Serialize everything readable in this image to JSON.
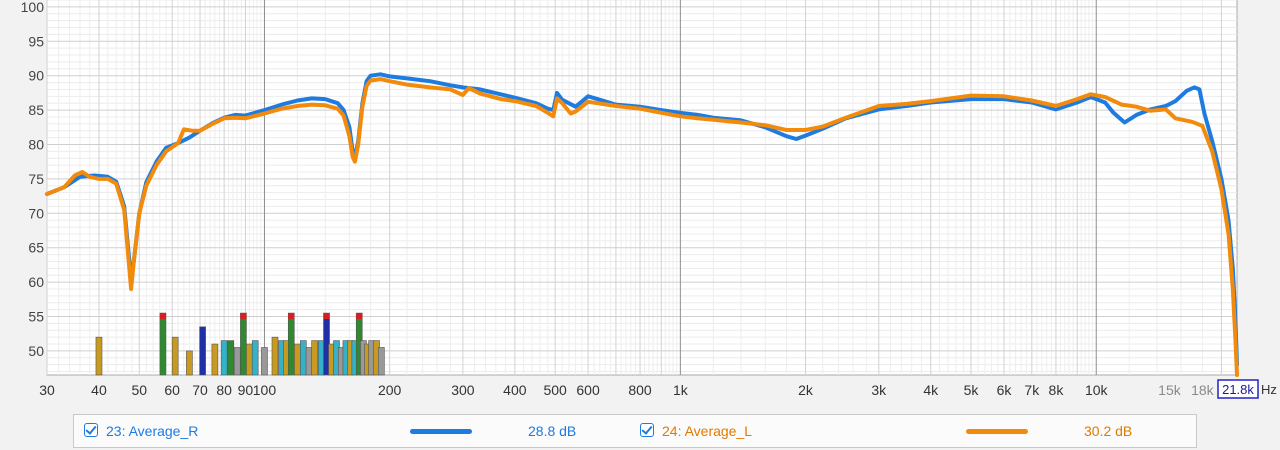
{
  "chart_data": {
    "type": "line",
    "x_scale": "log",
    "xlim": [
      30,
      21800
    ],
    "ylim": [
      46.5,
      101
    ],
    "x_unit": "Hz",
    "x_cursor_label": "21.8k",
    "y_ticks": [
      50,
      55,
      60,
      65,
      70,
      75,
      80,
      85,
      90,
      95,
      100
    ],
    "x_ticks": [
      {
        "v": 30,
        "t": "30"
      },
      {
        "v": 40,
        "t": "40"
      },
      {
        "v": 50,
        "t": "50"
      },
      {
        "v": 60,
        "t": "60"
      },
      {
        "v": 70,
        "t": "70"
      },
      {
        "v": 80,
        "t": "80"
      },
      {
        "v": 90,
        "t": "90"
      },
      {
        "v": 100,
        "t": "100"
      },
      {
        "v": 200,
        "t": "200"
      },
      {
        "v": 300,
        "t": "300"
      },
      {
        "v": 400,
        "t": "400"
      },
      {
        "v": 500,
        "t": "500"
      },
      {
        "v": 600,
        "t": "600"
      },
      {
        "v": 800,
        "t": "800"
      },
      {
        "v": 1000,
        "t": "1k"
      },
      {
        "v": 2000,
        "t": "2k"
      },
      {
        "v": 3000,
        "t": "3k"
      },
      {
        "v": 4000,
        "t": "4k"
      },
      {
        "v": 5000,
        "t": "5k"
      },
      {
        "v": 6000,
        "t": "6k"
      },
      {
        "v": 7000,
        "t": "7k"
      },
      {
        "v": 8000,
        "t": "8k"
      },
      {
        "v": 10000,
        "t": "10k"
      },
      {
        "v": 15000,
        "t": "15k",
        "dim": true
      },
      {
        "v": 18000,
        "t": "18k",
        "dim": true
      }
    ],
    "grid": true,
    "series": [
      {
        "name": "23: Average_R",
        "color": "#1e7be0",
        "points": [
          [
            30,
            72.8
          ],
          [
            33,
            73.8
          ],
          [
            36,
            75.3
          ],
          [
            39,
            75.5
          ],
          [
            42,
            75.3
          ],
          [
            44,
            74.6
          ],
          [
            46,
            71
          ],
          [
            47,
            65
          ],
          [
            47.8,
            60.5
          ],
          [
            48.5,
            63
          ],
          [
            50,
            70
          ],
          [
            52,
            74.5
          ],
          [
            55,
            77.5
          ],
          [
            58,
            79.5
          ],
          [
            62,
            80.2
          ],
          [
            66,
            81
          ],
          [
            70,
            82
          ],
          [
            75,
            83.1
          ],
          [
            80,
            83.9
          ],
          [
            85,
            84.3
          ],
          [
            90,
            84.2
          ],
          [
            100,
            85
          ],
          [
            110,
            85.8
          ],
          [
            120,
            86.4
          ],
          [
            130,
            86.7
          ],
          [
            140,
            86.6
          ],
          [
            150,
            86
          ],
          [
            155,
            85
          ],
          [
            160,
            82.5
          ],
          [
            163,
            79
          ],
          [
            165,
            78
          ],
          [
            168,
            80.5
          ],
          [
            172,
            86
          ],
          [
            176,
            89.2
          ],
          [
            180,
            90
          ],
          [
            190,
            90.2
          ],
          [
            200,
            89.9
          ],
          [
            220,
            89.6
          ],
          [
            250,
            89.2
          ],
          [
            280,
            88.6
          ],
          [
            300,
            88.3
          ],
          [
            330,
            88
          ],
          [
            370,
            87.3
          ],
          [
            400,
            86.8
          ],
          [
            450,
            86
          ],
          [
            480,
            85.2
          ],
          [
            495,
            85
          ],
          [
            505,
            87.5
          ],
          [
            520,
            86.5
          ],
          [
            560,
            85.5
          ],
          [
            600,
            87
          ],
          [
            650,
            86.4
          ],
          [
            700,
            85.8
          ],
          [
            800,
            85.5
          ],
          [
            900,
            85
          ],
          [
            1000,
            84.6
          ],
          [
            1100,
            84.3
          ],
          [
            1200,
            83.9
          ],
          [
            1400,
            83.5
          ],
          [
            1600,
            82.5
          ],
          [
            1800,
            81.2
          ],
          [
            1900,
            80.8
          ],
          [
            2000,
            81.3
          ],
          [
            2200,
            82.3
          ],
          [
            2500,
            83.8
          ],
          [
            3000,
            85.1
          ],
          [
            3500,
            85.6
          ],
          [
            4000,
            86.1
          ],
          [
            5000,
            86.6
          ],
          [
            6000,
            86.6
          ],
          [
            7000,
            86.1
          ],
          [
            8000,
            85.1
          ],
          [
            9000,
            86.1
          ],
          [
            9700,
            86.9
          ],
          [
            10500,
            86.1
          ],
          [
            11000,
            84.6
          ],
          [
            11700,
            83.2
          ],
          [
            12500,
            84.3
          ],
          [
            13500,
            85.1
          ],
          [
            14700,
            85.6
          ],
          [
            15500,
            86.3
          ],
          [
            16500,
            87.8
          ],
          [
            17200,
            88.3
          ],
          [
            17700,
            88
          ],
          [
            18200,
            84.5
          ],
          [
            19000,
            80.5
          ],
          [
            20000,
            75
          ],
          [
            20800,
            69
          ],
          [
            21300,
            62
          ],
          [
            21600,
            55
          ],
          [
            21800,
            48
          ]
        ]
      },
      {
        "name": "24: Average_L",
        "color": "#f28b0c",
        "points": [
          [
            30,
            72.8
          ],
          [
            33,
            73.8
          ],
          [
            35,
            75.5
          ],
          [
            36.5,
            76
          ],
          [
            38,
            75.3
          ],
          [
            40,
            75
          ],
          [
            42,
            75
          ],
          [
            44,
            74.3
          ],
          [
            46,
            70.5
          ],
          [
            47,
            64
          ],
          [
            47.8,
            59
          ],
          [
            48.5,
            63
          ],
          [
            50,
            70
          ],
          [
            52,
            74
          ],
          [
            55,
            77
          ],
          [
            58,
            79
          ],
          [
            62,
            80.2
          ],
          [
            64,
            82.2
          ],
          [
            67,
            82
          ],
          [
            70,
            82
          ],
          [
            75,
            83
          ],
          [
            80,
            83.8
          ],
          [
            85,
            83.9
          ],
          [
            90,
            83.8
          ],
          [
            100,
            84.5
          ],
          [
            110,
            85.2
          ],
          [
            120,
            85.6
          ],
          [
            130,
            85.8
          ],
          [
            140,
            85.7
          ],
          [
            150,
            85.2
          ],
          [
            155,
            84.2
          ],
          [
            160,
            81.2
          ],
          [
            163,
            78.2
          ],
          [
            165,
            77.5
          ],
          [
            168,
            80
          ],
          [
            172,
            85.5
          ],
          [
            176,
            88.5
          ],
          [
            180,
            89.3
          ],
          [
            190,
            89.5
          ],
          [
            200,
            89.2
          ],
          [
            220,
            88.7
          ],
          [
            250,
            88.3
          ],
          [
            280,
            88
          ],
          [
            300,
            87.2
          ],
          [
            310,
            88.2
          ],
          [
            330,
            87.4
          ],
          [
            370,
            86.6
          ],
          [
            400,
            86.3
          ],
          [
            450,
            85.6
          ],
          [
            480,
            84.6
          ],
          [
            495,
            84.1
          ],
          [
            505,
            86.7
          ],
          [
            520,
            86
          ],
          [
            545,
            84.5
          ],
          [
            560,
            84.8
          ],
          [
            600,
            86.2
          ],
          [
            650,
            85.9
          ],
          [
            700,
            85.6
          ],
          [
            800,
            85.2
          ],
          [
            900,
            84.6
          ],
          [
            1000,
            84.1
          ],
          [
            1100,
            83.8
          ],
          [
            1200,
            83.6
          ],
          [
            1400,
            83.2
          ],
          [
            1600,
            82.8
          ],
          [
            1800,
            82.1
          ],
          [
            2000,
            82.1
          ],
          [
            2200,
            82.6
          ],
          [
            2500,
            83.9
          ],
          [
            3000,
            85.6
          ],
          [
            3500,
            85.9
          ],
          [
            4000,
            86.3
          ],
          [
            5000,
            87.1
          ],
          [
            6000,
            87
          ],
          [
            7000,
            86.4
          ],
          [
            8000,
            85.6
          ],
          [
            9000,
            86.6
          ],
          [
            9700,
            87.3
          ],
          [
            10500,
            86.9
          ],
          [
            11500,
            85.8
          ],
          [
            12500,
            85.5
          ],
          [
            13500,
            84.9
          ],
          [
            14700,
            85.1
          ],
          [
            15500,
            83.8
          ],
          [
            17000,
            83.3
          ],
          [
            18000,
            82.7
          ],
          [
            19000,
            79
          ],
          [
            20000,
            73.5
          ],
          [
            20800,
            67
          ],
          [
            21300,
            59
          ],
          [
            21600,
            52
          ],
          [
            21800,
            46.5
          ]
        ]
      }
    ],
    "bars": [
      {
        "f": 40,
        "top": 52,
        "c": "#c99a20"
      },
      {
        "f": 57,
        "top": 55.5,
        "c": "#2f8a2f",
        "cap": "#d42020"
      },
      {
        "f": 61,
        "top": 52,
        "c": "#c99a20"
      },
      {
        "f": 66,
        "top": 50,
        "c": "#c99a20"
      },
      {
        "f": 71,
        "top": 53.5,
        "c": "#1f2fa5"
      },
      {
        "f": 76,
        "top": 51,
        "c": "#c99a20"
      },
      {
        "f": 80,
        "top": 51.5,
        "c": "#33b2c8"
      },
      {
        "f": 83,
        "top": 51.5,
        "c": "#2f8a2f"
      },
      {
        "f": 86,
        "top": 50.5,
        "c": "#999999"
      },
      {
        "f": 89,
        "top": 55.5,
        "c": "#2f8a2f",
        "cap": "#d42020"
      },
      {
        "f": 92,
        "top": 51,
        "c": "#c99a20"
      },
      {
        "f": 95,
        "top": 51.5,
        "c": "#33b2c8"
      },
      {
        "f": 100,
        "top": 50.5,
        "c": "#999999"
      },
      {
        "f": 106,
        "top": 52,
        "c": "#c99a20"
      },
      {
        "f": 110,
        "top": 51.5,
        "c": "#33b2c8"
      },
      {
        "f": 113,
        "top": 51.5,
        "c": "#c99a20"
      },
      {
        "f": 116,
        "top": 55.5,
        "c": "#2f8a2f",
        "cap": "#d42020"
      },
      {
        "f": 120,
        "top": 51,
        "c": "#c99a20"
      },
      {
        "f": 124,
        "top": 51.5,
        "c": "#33b2c8"
      },
      {
        "f": 128,
        "top": 50.5,
        "c": "#999999"
      },
      {
        "f": 132,
        "top": 51.5,
        "c": "#c99a20"
      },
      {
        "f": 137,
        "top": 51.5,
        "c": "#33b2c8"
      },
      {
        "f": 141,
        "top": 55.5,
        "c": "#1f2fa5",
        "cap": "#d42020"
      },
      {
        "f": 145,
        "top": 51,
        "c": "#c99a20"
      },
      {
        "f": 149,
        "top": 51.5,
        "c": "#33b2c8"
      },
      {
        "f": 153,
        "top": 50.5,
        "c": "#999999"
      },
      {
        "f": 157,
        "top": 51.5,
        "c": "#33b2c8"
      },
      {
        "f": 161,
        "top": 51.5,
        "c": "#c99a20"
      },
      {
        "f": 165,
        "top": 51.5,
        "c": "#33b2c8"
      },
      {
        "f": 169,
        "top": 55.5,
        "c": "#2f8a2f",
        "cap": "#d42020"
      },
      {
        "f": 173,
        "top": 51.5,
        "c": "#999999"
      },
      {
        "f": 177,
        "top": 51,
        "c": "#c99a20"
      },
      {
        "f": 181,
        "top": 51.5,
        "c": "#999999"
      },
      {
        "f": 186,
        "top": 51.5,
        "c": "#c99a20"
      },
      {
        "f": 191,
        "top": 50.5,
        "c": "#999999"
      }
    ]
  },
  "legend": [
    {
      "id": "23: Average_R",
      "value": "28.8 dB",
      "color": "#1e7be0",
      "text_color": "#1e7be0"
    },
    {
      "id": "24: Average_L",
      "value": "30.2 dB",
      "color": "#f28b0c",
      "text_color": "#e07a00"
    }
  ]
}
